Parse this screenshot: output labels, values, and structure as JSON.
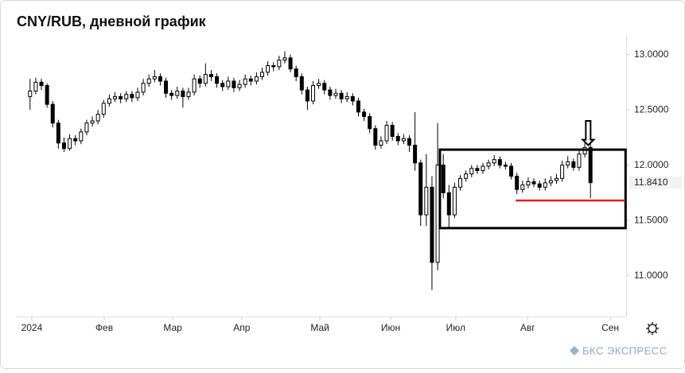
{
  "chart_data": {
    "type": "candlestick",
    "title": "CNY/RUB, дневной график",
    "candles": [
      [
        12.62,
        12.78,
        12.5,
        12.67
      ],
      [
        12.67,
        12.79,
        12.64,
        12.75
      ],
      [
        12.75,
        12.78,
        12.68,
        12.72
      ],
      [
        12.72,
        12.74,
        12.52,
        12.55
      ],
      [
        12.55,
        12.58,
        12.34,
        12.38
      ],
      [
        12.38,
        12.41,
        12.15,
        12.2
      ],
      [
        12.2,
        12.25,
        12.12,
        12.15
      ],
      [
        12.15,
        12.28,
        12.13,
        12.24
      ],
      [
        12.24,
        12.27,
        12.18,
        12.22
      ],
      [
        12.22,
        12.33,
        12.19,
        12.3
      ],
      [
        12.3,
        12.41,
        12.27,
        12.38
      ],
      [
        12.38,
        12.44,
        12.35,
        12.4
      ],
      [
        12.4,
        12.5,
        12.37,
        12.46
      ],
      [
        12.46,
        12.59,
        12.43,
        12.56
      ],
      [
        12.56,
        12.64,
        12.53,
        12.6
      ],
      [
        12.6,
        12.66,
        12.57,
        12.62
      ],
      [
        12.62,
        12.65,
        12.56,
        12.6
      ],
      [
        12.6,
        12.67,
        12.57,
        12.64
      ],
      [
        12.64,
        12.67,
        12.57,
        12.61
      ],
      [
        12.61,
        12.7,
        12.58,
        12.66
      ],
      [
        12.66,
        12.78,
        12.63,
        12.74
      ],
      [
        12.74,
        12.82,
        12.71,
        12.78
      ],
      [
        12.78,
        12.86,
        12.75,
        12.8
      ],
      [
        12.8,
        12.83,
        12.72,
        12.76
      ],
      [
        12.76,
        12.79,
        12.61,
        12.65
      ],
      [
        12.65,
        12.68,
        12.59,
        12.63
      ],
      [
        12.63,
        12.71,
        12.6,
        12.67
      ],
      [
        12.67,
        12.7,
        12.52,
        12.62
      ],
      [
        12.62,
        12.7,
        12.59,
        12.66
      ],
      [
        12.66,
        12.82,
        12.63,
        12.78
      ],
      [
        12.78,
        12.81,
        12.7,
        12.74
      ],
      [
        12.74,
        12.92,
        12.71,
        12.82
      ],
      [
        12.82,
        12.86,
        12.76,
        12.8
      ],
      [
        12.8,
        12.83,
        12.7,
        12.74
      ],
      [
        12.74,
        12.77,
        12.67,
        12.71
      ],
      [
        12.71,
        12.8,
        12.68,
        12.76
      ],
      [
        12.76,
        12.79,
        12.66,
        12.7
      ],
      [
        12.7,
        12.77,
        12.67,
        12.73
      ],
      [
        12.73,
        12.82,
        12.7,
        12.78
      ],
      [
        12.78,
        12.81,
        12.72,
        12.76
      ],
      [
        12.76,
        12.84,
        12.73,
        12.8
      ],
      [
        12.8,
        12.88,
        12.77,
        12.84
      ],
      [
        12.84,
        12.94,
        12.81,
        12.9
      ],
      [
        12.9,
        12.93,
        12.85,
        12.89
      ],
      [
        12.89,
        12.99,
        12.86,
        12.95
      ],
      [
        12.95,
        13.03,
        12.92,
        12.97
      ],
      [
        12.97,
        13.0,
        12.84,
        12.87
      ],
      [
        12.87,
        12.9,
        12.76,
        12.8
      ],
      [
        12.8,
        12.83,
        12.64,
        12.68
      ],
      [
        12.68,
        12.71,
        12.5,
        12.58
      ],
      [
        12.58,
        12.76,
        12.55,
        12.72
      ],
      [
        12.72,
        12.78,
        12.69,
        12.74
      ],
      [
        12.74,
        12.77,
        12.64,
        12.68
      ],
      [
        12.68,
        12.71,
        12.59,
        12.63
      ],
      [
        12.63,
        12.69,
        12.6,
        12.65
      ],
      [
        12.65,
        12.68,
        12.56,
        12.6
      ],
      [
        12.6,
        12.66,
        12.57,
        12.62
      ],
      [
        12.62,
        12.65,
        12.54,
        12.58
      ],
      [
        12.58,
        12.61,
        12.44,
        12.48
      ],
      [
        12.48,
        12.51,
        12.4,
        12.44
      ],
      [
        12.44,
        12.47,
        12.29,
        12.33
      ],
      [
        12.33,
        12.36,
        12.14,
        12.18
      ],
      [
        12.18,
        12.26,
        12.15,
        12.22
      ],
      [
        12.22,
        12.4,
        12.19,
        12.36
      ],
      [
        12.36,
        12.39,
        12.22,
        12.26
      ],
      [
        12.26,
        12.29,
        12.18,
        12.22
      ],
      [
        12.22,
        12.28,
        12.19,
        12.24
      ],
      [
        12.24,
        12.27,
        12.12,
        12.18
      ],
      [
        12.18,
        12.48,
        11.95,
        12.02
      ],
      [
        12.02,
        12.05,
        11.45,
        11.55
      ],
      [
        11.55,
        12.1,
        11.45,
        11.8
      ],
      [
        11.8,
        11.9,
        10.87,
        11.12
      ],
      [
        11.12,
        12.38,
        11.05,
        12.0
      ],
      [
        12.0,
        12.1,
        11.7,
        11.75
      ],
      [
        11.75,
        11.82,
        11.43,
        11.55
      ],
      [
        11.55,
        11.84,
        11.52,
        11.8
      ],
      [
        11.8,
        11.91,
        11.77,
        11.88
      ],
      [
        11.88,
        11.95,
        11.85,
        11.92
      ],
      [
        11.92,
        12.0,
        11.89,
        11.97
      ],
      [
        11.97,
        12.0,
        11.92,
        11.95
      ],
      [
        11.95,
        12.02,
        11.92,
        11.99
      ],
      [
        11.99,
        12.05,
        11.96,
        12.02
      ],
      [
        12.02,
        12.09,
        11.99,
        12.05
      ],
      [
        12.05,
        12.08,
        11.97,
        12.0
      ],
      [
        12.0,
        12.03,
        11.96,
        11.99
      ],
      [
        11.99,
        12.02,
        11.87,
        11.9
      ],
      [
        11.9,
        11.93,
        11.74,
        11.78
      ],
      [
        11.78,
        11.86,
        11.75,
        11.82
      ],
      [
        11.82,
        11.89,
        11.79,
        11.85
      ],
      [
        11.85,
        11.88,
        11.8,
        11.83
      ],
      [
        11.83,
        11.86,
        11.77,
        11.8
      ],
      [
        11.8,
        11.88,
        11.77,
        11.84
      ],
      [
        11.84,
        11.9,
        11.81,
        11.86
      ],
      [
        11.86,
        11.92,
        11.83,
        11.88
      ],
      [
        11.88,
        12.04,
        11.85,
        12.0
      ],
      [
        12.0,
        12.08,
        11.97,
        12.03
      ],
      [
        12.03,
        12.06,
        11.95,
        11.98
      ],
      [
        11.98,
        12.14,
        11.95,
        12.1
      ],
      [
        12.1,
        12.2,
        12.07,
        12.16
      ],
      [
        12.16,
        12.22,
        11.7,
        11.841
      ]
    ],
    "up_color": "#ffffff",
    "down_color": "#000000",
    "xlim": [
      -2.5,
      105.3
    ],
    "xticks": [
      {
        "value": 0.3,
        "label": "2024"
      },
      {
        "value": 13.1,
        "label": "Фев"
      },
      {
        "value": 25.2,
        "label": "Мар"
      },
      {
        "value": 37.4,
        "label": "Апр"
      },
      {
        "value": 51.2,
        "label": "Май"
      },
      {
        "value": 63.7,
        "label": "Июн"
      },
      {
        "value": 75.2,
        "label": "Июл"
      },
      {
        "value": 87.9,
        "label": "Авг"
      },
      {
        "value": 102.5,
        "label": "Сен"
      }
    ],
    "ylim": [
      10.63,
      13.17
    ],
    "yticks": [
      {
        "value": 11,
        "label": "11.0000"
      },
      {
        "value": 11.5,
        "label": "11.5000"
      },
      {
        "value": 12,
        "label": "12.0000"
      },
      {
        "value": 12.5,
        "label": "12.5000"
      },
      {
        "value": 13,
        "label": "13.0000"
      }
    ],
    "last_price": {
      "value": 11.841,
      "label": "11.8410"
    },
    "box": {
      "x": [
        72.4,
        105.2
      ],
      "y": [
        11.43,
        12.14
      ],
      "color": "#000000"
    },
    "level_line": {
      "x": [
        85.8,
        105.1
      ],
      "y": 11.68,
      "color": "#e02020"
    },
    "arrow": {
      "x": 98.6,
      "y": [
        12.4,
        12.18
      ],
      "color": "#000000"
    }
  },
  "brand": "БКС ЭКСПРЕСС"
}
